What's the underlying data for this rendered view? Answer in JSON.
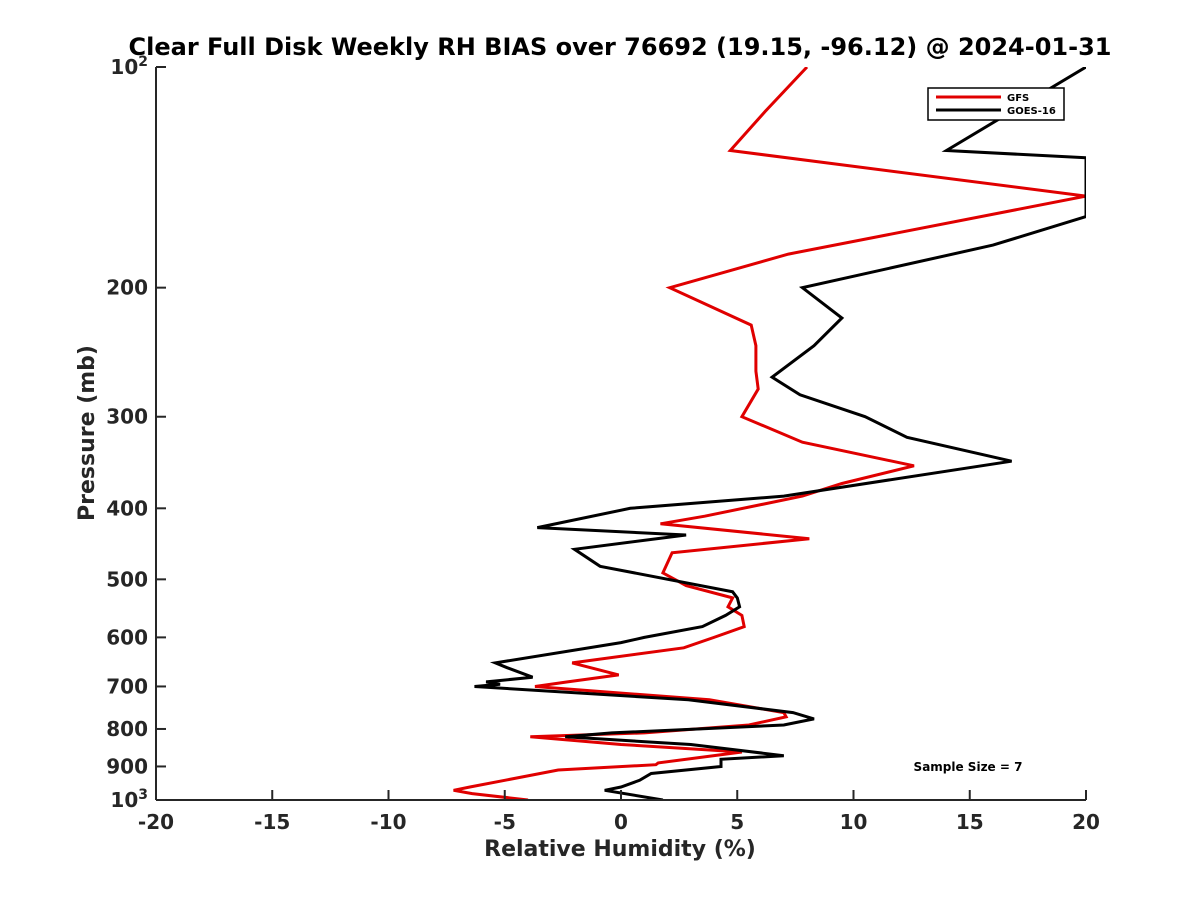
{
  "chart_data": {
    "type": "line",
    "title": "Clear Full Disk Weekly RH BIAS over 76692 (19.15, -96.12) @ 2024-01-31",
    "xlabel": "Relative Humidity (%)",
    "ylabel": "Pressure (mb)",
    "xlim": [
      -20,
      20
    ],
    "ylim": [
      100,
      1000
    ],
    "y_scale": "log",
    "y_reversed": true,
    "x_ticks": [
      -20,
      -15,
      -10,
      -5,
      0,
      5,
      10,
      15,
      20
    ],
    "y_ticks": [
      {
        "value": 100,
        "base": "10",
        "exp": "2"
      },
      {
        "value": 200,
        "label": "200"
      },
      {
        "value": 300,
        "label": "300"
      },
      {
        "value": 400,
        "label": "400"
      },
      {
        "value": 500,
        "label": "500"
      },
      {
        "value": 600,
        "label": "600"
      },
      {
        "value": 700,
        "label": "700"
      },
      {
        "value": 800,
        "label": "800"
      },
      {
        "value": 900,
        "label": "900"
      },
      {
        "value": 1000,
        "base": "10",
        "exp": "3"
      }
    ],
    "grid": false,
    "legend_position": "top-right",
    "annotation": "Sample Size = 7",
    "series": [
      {
        "name": "GFS",
        "color": "#e00000",
        "points": [
          [
            8.0,
            100
          ],
          [
            6.2,
            115
          ],
          [
            4.7,
            130
          ],
          [
            20.0,
            150
          ],
          [
            7.2,
            180
          ],
          [
            2.1,
            200
          ],
          [
            5.6,
            225
          ],
          [
            5.8,
            240
          ],
          [
            5.8,
            260
          ],
          [
            5.9,
            275
          ],
          [
            5.2,
            300
          ],
          [
            7.8,
            325
          ],
          [
            12.6,
            350
          ],
          [
            9.5,
            370
          ],
          [
            7.8,
            385
          ],
          [
            3.6,
            410
          ],
          [
            1.7,
            420
          ],
          [
            8.1,
            440
          ],
          [
            2.2,
            460
          ],
          [
            1.8,
            490
          ],
          [
            2.8,
            510
          ],
          [
            4.8,
            530
          ],
          [
            4.6,
            545
          ],
          [
            5.2,
            560
          ],
          [
            5.3,
            580
          ],
          [
            4.0,
            600
          ],
          [
            2.7,
            620
          ],
          [
            -2.1,
            650
          ],
          [
            -0.1,
            675
          ],
          [
            -2.3,
            690
          ],
          [
            -3.7,
            700
          ],
          [
            3.8,
            730
          ],
          [
            7.0,
            760
          ],
          [
            7.1,
            770
          ],
          [
            5.5,
            790
          ],
          [
            1.0,
            810
          ],
          [
            -3.9,
            820
          ],
          [
            0.0,
            840
          ],
          [
            5.2,
            860
          ],
          [
            1.6,
            890
          ],
          [
            1.5,
            895
          ],
          [
            -2.7,
            910
          ],
          [
            -5.0,
            940
          ],
          [
            -6.5,
            960
          ],
          [
            -7.2,
            970
          ],
          [
            -6.4,
            980
          ],
          [
            -4.0,
            1000
          ]
        ]
      },
      {
        "name": "GOES-16",
        "color": "#000000",
        "points": [
          [
            20.0,
            100
          ],
          [
            14.0,
            130
          ],
          [
            20.0,
            133
          ],
          [
            20.0,
            160
          ],
          [
            16.0,
            175
          ],
          [
            7.8,
            200
          ],
          [
            9.5,
            220
          ],
          [
            8.3,
            240
          ],
          [
            6.5,
            265
          ],
          [
            7.7,
            280
          ],
          [
            10.5,
            300
          ],
          [
            12.3,
            320
          ],
          [
            16.8,
            345
          ],
          [
            7.0,
            385
          ],
          [
            0.4,
            400
          ],
          [
            -3.6,
            425
          ],
          [
            2.8,
            435
          ],
          [
            -2.0,
            455
          ],
          [
            -0.9,
            480
          ],
          [
            4.8,
            520
          ],
          [
            5.0,
            530
          ],
          [
            5.1,
            545
          ],
          [
            4.5,
            560
          ],
          [
            3.5,
            580
          ],
          [
            1.0,
            600
          ],
          [
            0.0,
            610
          ],
          [
            -5.4,
            650
          ],
          [
            -4.9,
            660
          ],
          [
            -3.8,
            680
          ],
          [
            -5.8,
            690
          ],
          [
            -5.2,
            695
          ],
          [
            -6.3,
            700
          ],
          [
            2.9,
            730
          ],
          [
            7.4,
            760
          ],
          [
            8.3,
            775
          ],
          [
            7.0,
            790
          ],
          [
            -0.4,
            810
          ],
          [
            -2.4,
            820
          ],
          [
            3.0,
            840
          ],
          [
            7.0,
            870
          ],
          [
            4.3,
            880
          ],
          [
            4.3,
            900
          ],
          [
            1.3,
            920
          ],
          [
            0.8,
            940
          ],
          [
            0.0,
            960
          ],
          [
            -0.7,
            970
          ],
          [
            1.8,
            1000
          ]
        ]
      }
    ]
  }
}
